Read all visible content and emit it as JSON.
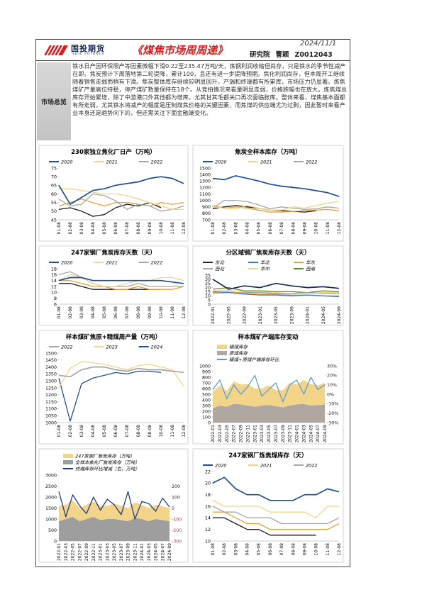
{
  "header": {
    "logo_text": "国投期货",
    "logo_sub": "SDIC FUTURES",
    "title": "《煤焦市场周周递》",
    "date": "2024/11/1",
    "department": "研究院",
    "author": "曹颖",
    "license": "Z0012043"
  },
  "summary": {
    "label": "市场总览",
    "text": "铁水日产因环保限产等因素微幅下滑0.22至235.47万吨/天，炼钢利润收缩但尚存，只是铁水的季节性减产在即。焦炭预计下周落地第二轮提降，累计100，且还有进一步提降预期。焦化利润尚存，但本周开工继续随着销售走弱而稍有下滑。焦炭整体库存继续较明显回升，产端和终端都有所累库，市场压力仍显著。炼焦煤矿产量高位持稳，停产煤矿数量保持在18个。从竞拍情况来看量明显走弱，价格跌幅也在放大。炼焦煤总库存开始累增，除了中游港口外其他都为增库，尤其甘其毛都关口再次面临胀库。整体来看，煤焦基本面都有所走弱，尤其铁水将减产的幅度是压制煤焦价格的关键因素，而焦煤的供应端尤为过剩，因此暂时来看产业本身还是趋势向下的，但还需关注下面金融端变化。"
  },
  "chart_data": [
    {
      "type": "line",
      "title": "230家独立焦化厂日产（万吨）",
      "categories": [
        "01-08",
        "02-08",
        "03-08",
        "04-08",
        "05-08",
        "06-08",
        "07-08",
        "08-08",
        "09-08",
        "10-08",
        "11-08",
        "12-08"
      ],
      "ylim": [
        45,
        75
      ],
      "yticks": [
        45,
        50,
        55,
        60,
        65,
        70,
        75
      ],
      "series": [
        {
          "name": "2020",
          "color": "#1f4e9c",
          "values": [
            65,
            54,
            58,
            62,
            63,
            65,
            66,
            67,
            69,
            70,
            69,
            66
          ]
        },
        {
          "name": "2021",
          "color": "#f3d58a",
          "values": [
            63,
            63,
            62,
            61,
            60,
            60,
            59,
            57,
            55,
            53,
            51,
            51
          ]
        },
        {
          "name": "2022",
          "color": "#a6a6a6",
          "values": [
            57,
            53,
            54,
            60,
            59,
            56,
            51,
            54,
            53,
            50,
            51,
            53
          ]
        },
        {
          "color": "#e8a23a",
          "values": [
            53,
            55,
            57,
            55,
            53,
            55,
            55,
            54,
            53,
            55,
            54,
            55
          ]
        },
        {
          "color": "#1a1a1a",
          "values": [
            51,
            52,
            50,
            47,
            48,
            52,
            54,
            53,
            55,
            52,
            null,
            null
          ]
        }
      ]
    },
    {
      "type": "line",
      "title": "焦炭全样本库存（万吨）",
      "categories": [
        "01-08",
        "02-08",
        "03-08",
        "04-08",
        "05-08",
        "06-08",
        "07-08",
        "08-08",
        "09-08",
        "10-08",
        "11-08",
        "12-08"
      ],
      "ylim": [
        700,
        1500
      ],
      "yticks": [
        700,
        800,
        900,
        1000,
        1100,
        1200,
        1300,
        1400,
        1500
      ],
      "series": [
        {
          "name": "2020",
          "color": "#1f4e9c",
          "values": [
            1340,
            1320,
            1380,
            1340,
            1300,
            1250,
            1220,
            1200,
            1180,
            1150,
            1120,
            1060
          ]
        },
        {
          "name": "2021",
          "color": "#f3d58a",
          "values": [
            900,
            880,
            870,
            920,
            880,
            850,
            850,
            900,
            880,
            920,
            960,
            980
          ]
        },
        {
          "name": "2022",
          "color": "#a6a6a6",
          "values": [
            880,
            1000,
            1000,
            980,
            930,
            870,
            900,
            880,
            860,
            870,
            900,
            880
          ]
        },
        {
          "color": "#e8a23a",
          "values": [
            920,
            880,
            900,
            880,
            850,
            820,
            820,
            830,
            840,
            850,
            860,
            840
          ]
        },
        {
          "color": "#1a1a1a",
          "values": [
            870,
            900,
            920,
            900,
            880,
            850,
            840,
            830,
            820,
            840,
            null,
            null
          ]
        }
      ]
    },
    {
      "type": "line",
      "title": "247家钢厂焦炭库存天数（天）",
      "categories": [
        "01-08",
        "02-08",
        "03-08",
        "04-08",
        "05-08",
        "06-08",
        "07-08",
        "08-08",
        "09-08",
        "10-08",
        "11-08",
        "12-08"
      ],
      "ylim": [
        6,
        18
      ],
      "yticks": [
        6,
        8,
        10,
        12,
        14,
        16,
        18
      ],
      "series": [
        {
          "name": "2020",
          "color": "#1f4e9c",
          "values": [
            14,
            15,
            15,
            14,
            14,
            14,
            14,
            14,
            14,
            14,
            13.5,
            13
          ]
        },
        {
          "name": "2021",
          "color": "#f3d58a",
          "values": [
            14,
            16,
            15,
            13,
            12,
            12,
            13,
            14,
            14,
            15,
            15,
            14
          ]
        },
        {
          "name": "2022",
          "color": "#a6a6a6",
          "values": [
            16,
            17,
            15,
            13,
            12,
            12,
            12,
            13,
            12,
            12,
            12,
            12
          ]
        },
        {
          "color": "#e8a23a",
          "values": [
            14,
            14,
            13,
            12,
            12,
            11,
            11,
            12,
            11,
            11,
            11,
            12
          ]
        },
        {
          "color": "#1a1a1a",
          "values": [
            13,
            13,
            12,
            11,
            11,
            11,
            11,
            11,
            11,
            11,
            null,
            null
          ]
        }
      ]
    },
    {
      "type": "line",
      "title": "分区域钢厂焦炭库存天数（天）",
      "categories": [
        "2022-01",
        "2022-05",
        "2022-09",
        "2023-01",
        "2023-05",
        "2023-09",
        "2024-01",
        "2024-05",
        "2024-09"
      ],
      "ylim": [
        0,
        35
      ],
      "yticks": [
        0,
        5,
        10,
        15,
        20,
        25,
        30,
        35
      ],
      "series": [
        {
          "name": "东北",
          "color": "#1c2a5a",
          "values": [
            30,
            18,
            22,
            20,
            25,
            22,
            20,
            21,
            19
          ]
        },
        {
          "name": "华北",
          "color": "#3a7bd5",
          "values": [
            15,
            14,
            12,
            11,
            11,
            10,
            11,
            10,
            9
          ]
        },
        {
          "name": "华东",
          "color": "#e8a23a",
          "values": [
            14,
            15,
            13,
            12,
            12,
            11,
            11,
            10,
            10
          ]
        },
        {
          "name": "西北",
          "color": "#a6a6a6",
          "values": [
            13,
            14,
            14,
            14,
            13,
            13,
            14,
            13,
            13
          ]
        },
        {
          "name": "华中",
          "color": "#f3d58a",
          "values": [
            16,
            17,
            15,
            14,
            14,
            13,
            13,
            14,
            14
          ]
        },
        {
          "name": "西南",
          "color": "#5a8a2a",
          "values": [
            18,
            20,
            16,
            16,
            15,
            15,
            14,
            16,
            15
          ]
        }
      ]
    },
    {
      "type": "line",
      "title": "样本煤矿焦原+精煤周产量（万吨）",
      "categories": [
        "01-08",
        "02-08",
        "03-08",
        "04-08",
        "05-08",
        "06-08",
        "07-08",
        "08-08",
        "09-08",
        "10-08",
        "11-08",
        "12-08"
      ],
      "ylim": [
        1000,
        1500
      ],
      "yticks": [
        1000,
        1050,
        1100,
        1150,
        1200,
        1250,
        1300,
        1350,
        1400,
        1450,
        1500
      ],
      "series": [
        {
          "name": "2022",
          "color": "#a6a6a6",
          "values": [
            1340,
            1330,
            1380,
            1400,
            1400,
            1380,
            1370,
            1390,
            1380,
            1380,
            1370,
            1360
          ]
        },
        {
          "name": "2023",
          "color": "#f3d58a",
          "values": [
            1250,
            1390,
            1440,
            1430,
            1420,
            1400,
            1380,
            1410,
            1420,
            1400,
            1380,
            1260
          ]
        },
        {
          "name": "2024",
          "color": "#1f4e9c",
          "values": [
            1320,
            1010,
            1280,
            1320,
            1340,
            1360,
            1350,
            1370,
            1370,
            1360,
            null,
            null
          ]
        }
      ]
    },
    {
      "type": "combo",
      "title": "样本煤矿产端库存变动",
      "stacked": true,
      "categories": [
        "2022-01",
        "2022-03",
        "2022-05",
        "2022-07",
        "2022-09",
        "2022-11",
        "2023-01",
        "2023-03",
        "2023-05",
        "2023-07",
        "2023-09",
        "2023-11",
        "2024-01",
        "2024-03",
        "2024-05",
        "2024-07",
        "2024-09"
      ],
      "ylim": [
        0,
        1000
      ],
      "yticks": [
        0,
        100,
        200,
        300,
        400,
        500,
        600,
        700,
        800,
        900,
        1000
      ],
      "y2lim": [
        -30,
        30
      ],
      "y2ticks": [
        {
          "value": -30,
          "label": "-30%"
        },
        {
          "value": -20,
          "label": "-20%"
        },
        {
          "value": -10,
          "label": "-10%"
        },
        {
          "value": 0,
          "label": "0%"
        },
        {
          "value": 10,
          "label": "10%"
        },
        {
          "value": 20,
          "label": "20%"
        },
        {
          "value": 30,
          "label": "30%"
        }
      ],
      "series": [
        {
          "name": "精煤库存",
          "kind": "area",
          "color": "#f3d58a",
          "values": [
            300,
            350,
            280,
            400,
            350,
            380,
            320,
            300,
            350,
            280,
            300,
            400,
            350,
            420,
            380,
            350,
            380
          ]
        },
        {
          "name": "原煤库存",
          "kind": "area",
          "color": "#b0a8a0",
          "values": [
            250,
            300,
            280,
            330,
            320,
            300,
            280,
            300,
            310,
            290,
            270,
            300,
            320,
            330,
            300,
            310,
            320
          ]
        },
        {
          "name": "精煤+原煤产端库存环比",
          "kind": "line",
          "axis": "y2",
          "color": "#5b9bd5",
          "values": [
            5,
            15,
            -5,
            10,
            0,
            8,
            20,
            -2,
            5,
            12,
            -8,
            10,
            15,
            0,
            18,
            5,
            10
          ]
        }
      ]
    },
    {
      "type": "combo",
      "stacked": true,
      "categories": [
        "2022-01",
        "2022-03",
        "2022-05",
        "2022-07",
        "2022-09",
        "2022-11",
        "2023-01",
        "2023-03",
        "2023-05",
        "2023-07",
        "2023-09",
        "2023-11",
        "2024-01",
        "2024-03",
        "2024-05",
        "2024-07",
        "2024-09"
      ],
      "ylim": [
        0,
        3000
      ],
      "yticks": [
        0,
        500,
        1000,
        1500,
        2000,
        2500,
        3000
      ],
      "y2lim": [
        -300,
        300
      ],
      "y2ticks": [
        -300,
        -200,
        -100,
        0,
        100,
        200
      ],
      "y2tick_negative_color": "#e02020",
      "series": [
        {
          "name": "247家钢厂焦炭库存（万吨）",
          "kind": "area",
          "color": "#f3d58a",
          "values": [
            700,
            650,
            750,
            600,
            650,
            700,
            650,
            600,
            700,
            650,
            600,
            700,
            650,
            600,
            650,
            620,
            600
          ]
        },
        {
          "name": "全样本焦化厂焦炭库存（万吨）",
          "kind": "area",
          "color": "#9e9e9e",
          "values": [
            900,
            1000,
            1100,
            900,
            1000,
            1100,
            950,
            1000,
            1000,
            950,
            900,
            1050,
            1000,
            900,
            1000,
            950,
            900
          ]
        },
        {
          "name": "终端库存环比增减（右，万吨）",
          "kind": "line",
          "axis": "y2",
          "color": "#1f3a8a",
          "values": [
            150,
            -80,
            120,
            20,
            -50,
            100,
            -20,
            80,
            30,
            -60,
            150,
            -100,
            60,
            40,
            -30,
            90,
            10
          ]
        }
      ]
    },
    {
      "type": "line",
      "title": "247家钢厂炼焦煤库存（天）",
      "categories": [
        "01-08",
        "02-08",
        "03-08",
        "04-08",
        "05-08",
        "06-08",
        "07-08",
        "08-08",
        "09-08",
        "10-08",
        "11-08",
        "12-08"
      ],
      "ylim": [
        10,
        22
      ],
      "yticks": [
        10,
        12,
        14,
        16,
        18,
        20,
        22
      ],
      "series": [
        {
          "name": "2020",
          "color": "#1f4e9c",
          "values": [
            20,
            21,
            19,
            18,
            18,
            17,
            17,
            17,
            18,
            18,
            19,
            18.5
          ]
        },
        {
          "name": "2021",
          "color": "#f3d58a",
          "values": [
            17,
            16,
            16,
            16,
            16,
            15,
            15,
            15,
            15,
            14,
            16,
            16
          ]
        },
        {
          "name": "2022",
          "color": "#a6a6a6",
          "values": [
            16,
            15,
            15,
            14,
            14,
            14,
            13,
            13,
            13,
            13,
            13,
            14
          ]
        },
        {
          "color": "#e8a23a",
          "values": [
            15,
            15,
            14,
            13,
            13,
            12,
            12,
            12,
            12,
            12,
            12,
            13
          ]
        },
        {
          "color": "#1a1a1a",
          "values": [
            14,
            14,
            13,
            12,
            12,
            11,
            11,
            11,
            11,
            11,
            null,
            null
          ]
        }
      ]
    }
  ]
}
